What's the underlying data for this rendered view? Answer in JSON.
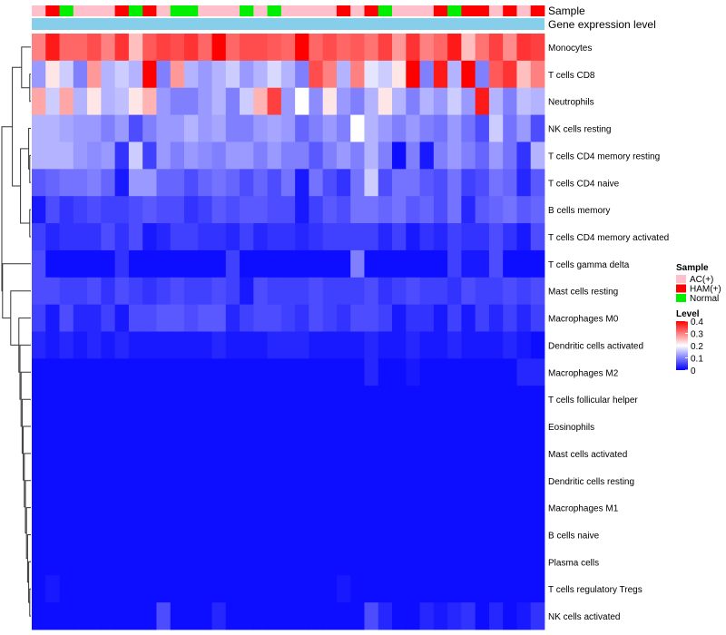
{
  "chart_data": {
    "type": "heatmap",
    "title": "",
    "annotation_rows": {
      "sample_label": "Sample",
      "expression_label": "Gene expression level"
    },
    "sample_groups": [
      "AC(+)",
      "HAM(+)",
      "Normal",
      "AC(+)",
      "AC(+)",
      "AC(+)",
      "HAM(+)",
      "Normal",
      "HAM(+)",
      "AC(+)",
      "Normal",
      "Normal",
      "AC(+)",
      "AC(+)",
      "AC(+)",
      "Normal",
      "AC(+)",
      "Normal",
      "AC(+)",
      "AC(+)",
      "AC(+)",
      "AC(+)",
      "HAM(+)",
      "AC(+)",
      "HAM(+)",
      "Normal",
      "AC(+)",
      "AC(+)",
      "AC(+)",
      "HAM(+)",
      "Normal",
      "HAM(+)",
      "HAM(+)",
      "AC(+)",
      "HAM(+)",
      "AC(+)",
      "HAM(+)"
    ],
    "rows": [
      "Monocytes",
      "T cells CD8",
      "Neutrophils",
      "NK cells resting",
      "T cells CD4 memory resting",
      "T cells CD4 naive",
      "B cells memory",
      "T cells CD4 memory activated",
      "T cells gamma delta",
      "Mast cells resting",
      "Macrophages M0",
      "Dendritic cells activated",
      "Macrophages M2",
      "T cells follicular helper",
      "Eosinophils",
      "Mast cells activated",
      "Dendritic cells resting",
      "Macrophages M1",
      "B cells naive",
      "Plasma cells",
      "T cells regulatory  Tregs",
      "NK cells activated"
    ],
    "values": [
      [
        0.3,
        0.38,
        0.32,
        0.32,
        0.34,
        0.3,
        0.36,
        0.25,
        0.33,
        0.35,
        0.34,
        0.36,
        0.32,
        0.4,
        0.32,
        0.34,
        0.34,
        0.33,
        0.32,
        0.4,
        0.32,
        0.34,
        0.32,
        0.33,
        0.31,
        0.35,
        0.28,
        0.36,
        0.3,
        0.32,
        0.38,
        0.25,
        0.31,
        0.35,
        0.29,
        0.36,
        0.35
      ],
      [
        0.12,
        0.22,
        0.16,
        0.1,
        0.28,
        0.14,
        0.16,
        0.14,
        0.4,
        0.1,
        0.28,
        0.14,
        0.12,
        0.14,
        0.16,
        0.12,
        0.14,
        0.17,
        0.14,
        0.1,
        0.34,
        0.3,
        0.14,
        0.3,
        0.18,
        0.16,
        0.22,
        0.4,
        0.1,
        0.38,
        0.14,
        0.4,
        0.1,
        0.33,
        0.36,
        0.25,
        0.3
      ],
      [
        0.27,
        0.16,
        0.27,
        0.14,
        0.22,
        0.14,
        0.15,
        0.22,
        0.26,
        0.12,
        0.1,
        0.1,
        0.12,
        0.14,
        0.1,
        0.16,
        0.26,
        0.35,
        0.12,
        0.2,
        0.11,
        0.22,
        0.12,
        0.1,
        0.14,
        0.22,
        0.14,
        0.1,
        0.14,
        0.12,
        0.16,
        0.12,
        0.38,
        0.14,
        0.1,
        0.15,
        0.14
      ],
      [
        0.14,
        0.14,
        0.13,
        0.12,
        0.12,
        0.1,
        0.12,
        0.06,
        0.1,
        0.12,
        0.12,
        0.14,
        0.12,
        0.13,
        0.1,
        0.1,
        0.12,
        0.13,
        0.12,
        0.08,
        0.1,
        0.12,
        0.1,
        0.2,
        0.14,
        0.12,
        0.1,
        0.12,
        0.1,
        0.09,
        0.12,
        0.09,
        0.06,
        0.16,
        0.09,
        0.12,
        0.06
      ],
      [
        0.14,
        0.14,
        0.14,
        0.12,
        0.11,
        0.12,
        0.04,
        0.16,
        0.05,
        0.12,
        0.1,
        0.12,
        0.11,
        0.1,
        0.12,
        0.12,
        0.1,
        0.12,
        0.1,
        0.1,
        0.07,
        0.1,
        0.12,
        0.1,
        0.14,
        0.1,
        0.01,
        0.1,
        0.02,
        0.1,
        0.12,
        0.1,
        0.08,
        0.12,
        0.09,
        0.04,
        0.14
      ],
      [
        0.07,
        0.08,
        0.09,
        0.09,
        0.1,
        0.08,
        0.02,
        0.12,
        0.12,
        0.08,
        0.08,
        0.06,
        0.08,
        0.09,
        0.08,
        0.06,
        0.08,
        0.06,
        0.09,
        0.02,
        0.09,
        0.06,
        0.04,
        0.09,
        0.16,
        0.06,
        0.09,
        0.09,
        0.07,
        0.06,
        0.09,
        0.05,
        0.06,
        0.09,
        0.08,
        0.03,
        0.07
      ],
      [
        0.02,
        0.06,
        0.04,
        0.05,
        0.06,
        0.05,
        0.05,
        0.06,
        0.07,
        0.06,
        0.06,
        0.04,
        0.05,
        0.07,
        0.06,
        0.07,
        0.07,
        0.06,
        0.06,
        0.02,
        0.05,
        0.07,
        0.06,
        0.09,
        0.09,
        0.08,
        0.09,
        0.07,
        0.08,
        0.06,
        0.09,
        0.03,
        0.07,
        0.08,
        0.09,
        0.07,
        0.08
      ],
      [
        0.05,
        0.03,
        0.04,
        0.04,
        0.04,
        0.06,
        0.04,
        0.06,
        0.02,
        0.03,
        0.05,
        0.05,
        0.04,
        0.04,
        0.03,
        0.05,
        0.03,
        0.04,
        0.04,
        0.03,
        0.04,
        0.05,
        0.05,
        0.05,
        0.05,
        0.03,
        0.05,
        0.02,
        0.04,
        0.03,
        0.05,
        0.04,
        0.04,
        0.06,
        0.04,
        0.02,
        0.06
      ],
      [
        0.06,
        0.01,
        0.01,
        0.01,
        0.01,
        0.01,
        0.04,
        0.01,
        0.01,
        0.01,
        0.01,
        0.01,
        0.01,
        0.01,
        0.05,
        0.01,
        0.01,
        0.01,
        0.01,
        0.01,
        0.01,
        0.01,
        0.01,
        0.1,
        0.01,
        0.01,
        0.01,
        0.01,
        0.01,
        0.01,
        0.05,
        0.02,
        0.02,
        0.06,
        0.01,
        0.01,
        0.01
      ],
      [
        0.06,
        0.06,
        0.05,
        0.05,
        0.06,
        0.04,
        0.06,
        0.05,
        0.04,
        0.05,
        0.06,
        0.05,
        0.05,
        0.06,
        0.05,
        0.02,
        0.06,
        0.05,
        0.05,
        0.05,
        0.06,
        0.05,
        0.05,
        0.05,
        0.06,
        0.04,
        0.05,
        0.06,
        0.05,
        0.05,
        0.04,
        0.06,
        0.05,
        0.05,
        0.06,
        0.05,
        0.06
      ],
      [
        0.05,
        0.02,
        0.06,
        0.03,
        0.03,
        0.05,
        0.02,
        0.06,
        0.06,
        0.07,
        0.07,
        0.06,
        0.07,
        0.07,
        0.03,
        0.05,
        0.06,
        0.06,
        0.05,
        0.04,
        0.06,
        0.05,
        0.04,
        0.06,
        0.06,
        0.05,
        0.02,
        0.04,
        0.04,
        0.02,
        0.05,
        0.02,
        0.05,
        0.03,
        0.05,
        0.03,
        0.05
      ],
      [
        0.03,
        0.02,
        0.03,
        0.02,
        0.03,
        0.02,
        0.03,
        0.02,
        0.02,
        0.02,
        0.02,
        0.02,
        0.02,
        0.03,
        0.02,
        0.02,
        0.02,
        0.03,
        0.03,
        0.03,
        0.02,
        0.02,
        0.02,
        0.02,
        0.03,
        0.02,
        0.02,
        0.03,
        0.02,
        0.02,
        0.03,
        0.02,
        0.02,
        0.02,
        0.03,
        0.02,
        0.01
      ],
      [
        0.01,
        0.01,
        0.01,
        0.01,
        0.01,
        0.01,
        0.01,
        0.01,
        0.01,
        0.01,
        0.01,
        0.01,
        0.01,
        0.01,
        0.01,
        0.01,
        0.01,
        0.01,
        0.01,
        0.01,
        0.01,
        0.01,
        0.01,
        0.01,
        0.03,
        0.01,
        0.01,
        0.02,
        0.01,
        0.01,
        0.01,
        0.01,
        0.01,
        0.01,
        0.01,
        0.03,
        0.03
      ],
      [
        0.01,
        0.01,
        0.01,
        0.01,
        0.01,
        0.01,
        0.01,
        0.01,
        0.01,
        0.01,
        0.01,
        0.01,
        0.01,
        0.01,
        0.01,
        0.01,
        0.01,
        0.01,
        0.01,
        0.01,
        0.01,
        0.01,
        0.01,
        0.01,
        0.01,
        0.01,
        0.01,
        0.01,
        0.01,
        0.01,
        0.01,
        0.01,
        0.01,
        0.01,
        0.01,
        0.01,
        0.01
      ],
      [
        0.01,
        0.01,
        0.01,
        0.01,
        0.01,
        0.01,
        0.01,
        0.01,
        0.01,
        0.01,
        0.01,
        0.01,
        0.01,
        0.01,
        0.01,
        0.01,
        0.01,
        0.01,
        0.01,
        0.01,
        0.01,
        0.01,
        0.01,
        0.01,
        0.01,
        0.01,
        0.01,
        0.01,
        0.01,
        0.01,
        0.01,
        0.01,
        0.01,
        0.01,
        0.01,
        0.01,
        0.01
      ],
      [
        0.01,
        0.01,
        0.01,
        0.01,
        0.01,
        0.01,
        0.01,
        0.01,
        0.01,
        0.01,
        0.01,
        0.01,
        0.01,
        0.01,
        0.01,
        0.01,
        0.01,
        0.01,
        0.01,
        0.01,
        0.01,
        0.01,
        0.01,
        0.01,
        0.01,
        0.01,
        0.01,
        0.01,
        0.01,
        0.01,
        0.01,
        0.01,
        0.01,
        0.01,
        0.01,
        0.01,
        0.01
      ],
      [
        0.01,
        0.01,
        0.01,
        0.01,
        0.01,
        0.01,
        0.01,
        0.01,
        0.01,
        0.01,
        0.01,
        0.01,
        0.01,
        0.01,
        0.01,
        0.01,
        0.01,
        0.01,
        0.01,
        0.01,
        0.01,
        0.01,
        0.01,
        0.01,
        0.01,
        0.01,
        0.01,
        0.01,
        0.01,
        0.01,
        0.01,
        0.01,
        0.01,
        0.01,
        0.01,
        0.01,
        0.01
      ],
      [
        0.01,
        0.01,
        0.01,
        0.01,
        0.01,
        0.01,
        0.01,
        0.01,
        0.01,
        0.01,
        0.01,
        0.01,
        0.01,
        0.01,
        0.01,
        0.01,
        0.01,
        0.01,
        0.01,
        0.01,
        0.01,
        0.01,
        0.01,
        0.01,
        0.01,
        0.01,
        0.01,
        0.01,
        0.01,
        0.01,
        0.01,
        0.01,
        0.01,
        0.01,
        0.01,
        0.01,
        0.01
      ],
      [
        0.01,
        0.01,
        0.01,
        0.01,
        0.01,
        0.01,
        0.01,
        0.01,
        0.01,
        0.01,
        0.01,
        0.01,
        0.01,
        0.01,
        0.01,
        0.01,
        0.01,
        0.01,
        0.01,
        0.01,
        0.01,
        0.01,
        0.01,
        0.01,
        0.01,
        0.01,
        0.01,
        0.01,
        0.01,
        0.01,
        0.01,
        0.01,
        0.01,
        0.01,
        0.01,
        0.01,
        0.01
      ],
      [
        0.01,
        0.01,
        0.01,
        0.01,
        0.01,
        0.01,
        0.01,
        0.01,
        0.01,
        0.01,
        0.01,
        0.01,
        0.01,
        0.01,
        0.01,
        0.01,
        0.01,
        0.01,
        0.01,
        0.01,
        0.01,
        0.01,
        0.01,
        0.01,
        0.01,
        0.01,
        0.01,
        0.01,
        0.01,
        0.01,
        0.01,
        0.01,
        0.01,
        0.01,
        0.01,
        0.01,
        0.01
      ],
      [
        0.01,
        0.02,
        0.01,
        0.01,
        0.01,
        0.01,
        0.01,
        0.01,
        0.01,
        0.01,
        0.01,
        0.01,
        0.01,
        0.01,
        0.01,
        0.01,
        0.01,
        0.01,
        0.01,
        0.01,
        0.01,
        0.01,
        0.02,
        0.01,
        0.01,
        0.01,
        0.01,
        0.01,
        0.01,
        0.01,
        0.01,
        0.01,
        0.01,
        0.01,
        0.01,
        0.01,
        0.01
      ],
      [
        0.01,
        0.01,
        0.01,
        0.01,
        0.01,
        0.01,
        0.01,
        0.01,
        0.01,
        0.06,
        0.01,
        0.01,
        0.01,
        0.03,
        0.01,
        0.01,
        0.01,
        0.01,
        0.01,
        0.01,
        0.01,
        0.01,
        0.01,
        0.01,
        0.06,
        0.03,
        0.01,
        0.01,
        0.03,
        0.02,
        0.03,
        0.04,
        0.01,
        0.03,
        0.01,
        0.02,
        0.04
      ]
    ],
    "legend": {
      "sample_title": "Sample",
      "sample_entries": [
        {
          "label": "AC(+)",
          "color": "#FFC0CB"
        },
        {
          "label": "HAM(+)",
          "color": "#FF0000"
        },
        {
          "label": "Normal",
          "color": "#00EE00"
        }
      ],
      "level_title": "Level",
      "level_ticks": [
        "0.4",
        "0.3",
        "0.2",
        "0.1",
        "0"
      ],
      "level_range": [
        0,
        0.4
      ]
    },
    "colors": {
      "low": "#0000FF",
      "mid": "#FFFFFF",
      "high": "#FF0000",
      "expression_bar": "#87CEEB"
    }
  }
}
